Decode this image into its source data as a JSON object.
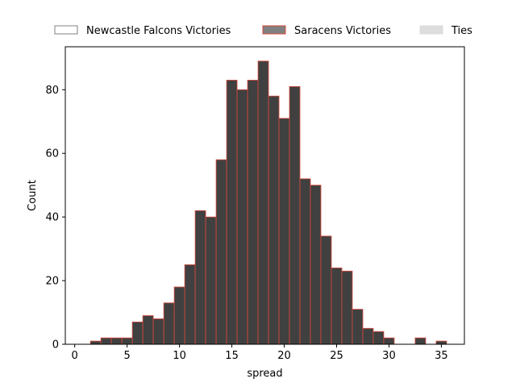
{
  "chart_data": {
    "type": "bar",
    "title": "",
    "xlabel": "spread",
    "ylabel": "Count",
    "xlim": [
      -0.9,
      37.2
    ],
    "ylim": [
      0,
      93.5
    ],
    "xticks": [
      0,
      5,
      10,
      15,
      20,
      25,
      30,
      35
    ],
    "yticks": [
      0,
      20,
      40,
      60,
      80
    ],
    "bin_width": 1,
    "legend_position": "top",
    "colors": {
      "bar_fill": "#404040",
      "bar_edge": "#d9483b",
      "newcastle_swatch_fill": "#ffffff",
      "newcastle_swatch_edge": "#808080",
      "saracens_swatch_fill": "#808080",
      "saracens_swatch_edge": "#d9483b",
      "ties_swatch_fill": "#dddddd"
    },
    "legend": [
      {
        "label": "Newcastle Falcons Victories",
        "style": "newcastle"
      },
      {
        "label": "Saracens Victories",
        "style": "saracens"
      },
      {
        "label": "Ties",
        "style": "ties"
      }
    ],
    "series": [
      {
        "name": "Saracens Victories",
        "bins": [
          {
            "x": 1.5,
            "value": 1
          },
          {
            "x": 2.5,
            "value": 2
          },
          {
            "x": 3.5,
            "value": 2
          },
          {
            "x": 4.5,
            "value": 2
          },
          {
            "x": 5.5,
            "value": 7
          },
          {
            "x": 6.5,
            "value": 9
          },
          {
            "x": 7.5,
            "value": 8
          },
          {
            "x": 8.5,
            "value": 13
          },
          {
            "x": 9.5,
            "value": 18
          },
          {
            "x": 10.5,
            "value": 25
          },
          {
            "x": 11.5,
            "value": 42
          },
          {
            "x": 12.5,
            "value": 40
          },
          {
            "x": 13.5,
            "value": 58
          },
          {
            "x": 14.5,
            "value": 83
          },
          {
            "x": 15.5,
            "value": 80
          },
          {
            "x": 16.5,
            "value": 83
          },
          {
            "x": 17.5,
            "value": 89
          },
          {
            "x": 18.5,
            "value": 78
          },
          {
            "x": 19.5,
            "value": 71
          },
          {
            "x": 20.5,
            "value": 81
          },
          {
            "x": 21.5,
            "value": 52
          },
          {
            "x": 22.5,
            "value": 50
          },
          {
            "x": 23.5,
            "value": 34
          },
          {
            "x": 24.5,
            "value": 24
          },
          {
            "x": 25.5,
            "value": 23
          },
          {
            "x": 26.5,
            "value": 11
          },
          {
            "x": 27.5,
            "value": 5
          },
          {
            "x": 28.5,
            "value": 4
          },
          {
            "x": 29.5,
            "value": 2
          },
          {
            "x": 32.5,
            "value": 2
          },
          {
            "x": 34.5,
            "value": 1
          }
        ]
      }
    ]
  }
}
